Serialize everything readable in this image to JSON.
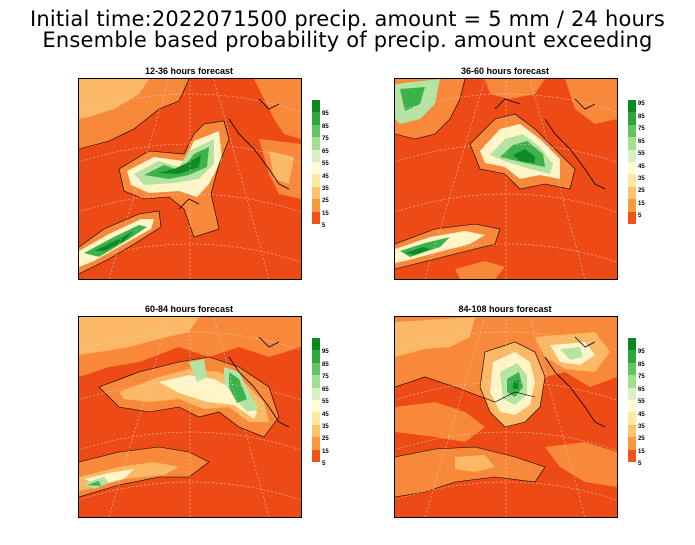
{
  "header": {
    "line1": "Initial time:2022071500 precip. amount =  5 mm / 24 hours",
    "line2": "Ensemble based probability of precip. amount exceeding"
  },
  "panels": [
    {
      "title": "12-36 hours forecast"
    },
    {
      "title": "36-60 hours forecast"
    },
    {
      "title": "60-84 hours forecast"
    },
    {
      "title": "84-108 hours forecast"
    }
  ],
  "colorbar": {
    "labels": [
      "95",
      "85",
      "75",
      "65",
      "55",
      "45",
      "35",
      "25",
      "15",
      "5"
    ],
    "colors": [
      "#0a8a1e",
      "#2fa83a",
      "#63c563",
      "#a5dd93",
      "#d8f0c2",
      "#fffbd2",
      "#fde8a0",
      "#fcc468",
      "#f89a3a",
      "#f0521c"
    ]
  },
  "palette": {
    "background": "#ee4a16",
    "orange": "#f8883a",
    "lightorange": "#fbb866",
    "pale": "#fff5c8",
    "lightgreen": "#b5e3a2",
    "green": "#3bb24a",
    "darkgreen": "#108a28"
  }
}
